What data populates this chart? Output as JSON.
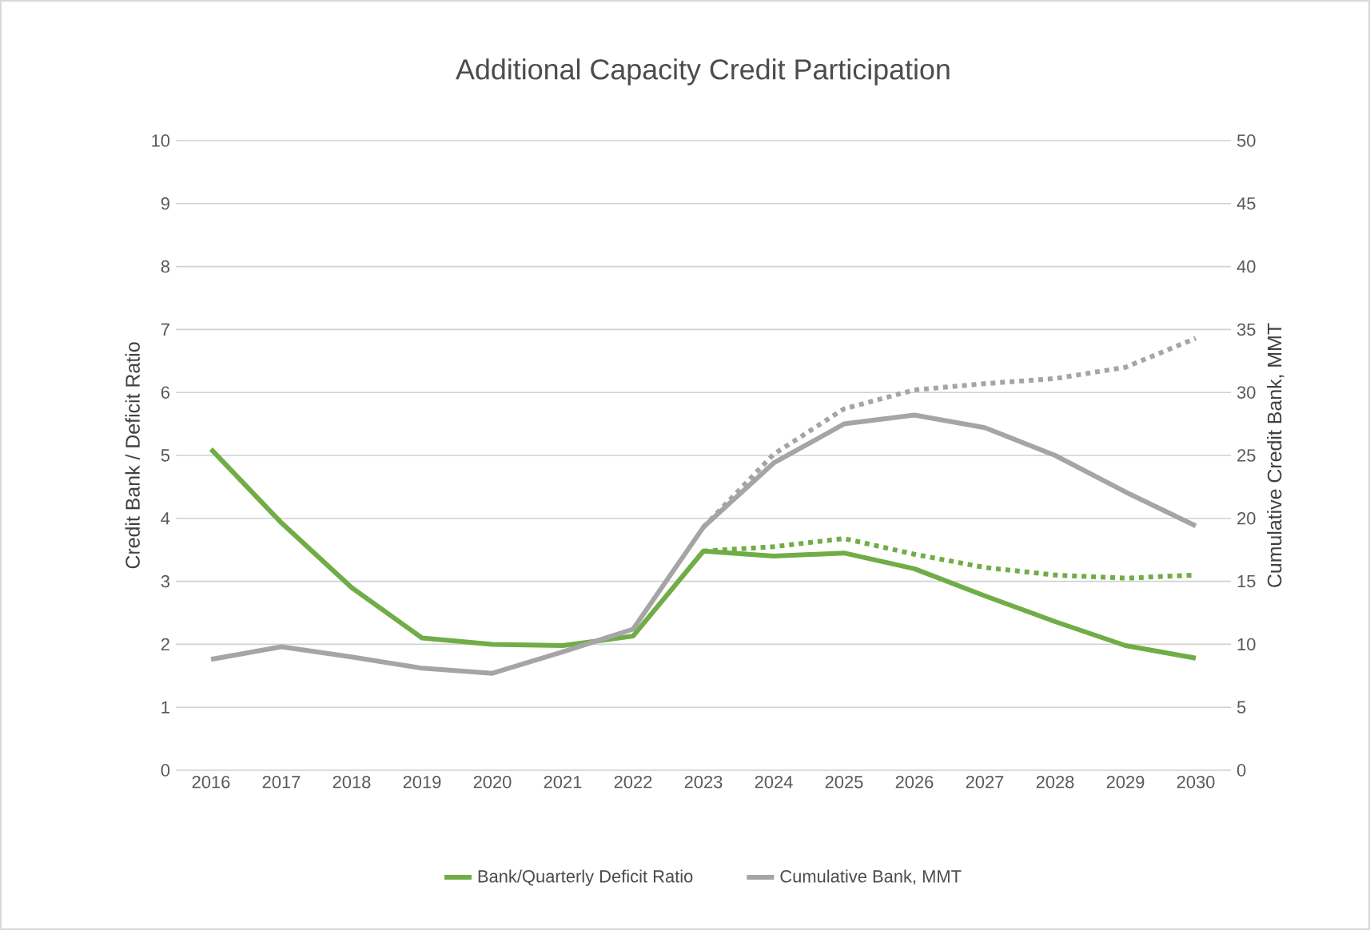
{
  "chart_data": {
    "type": "line",
    "title": "Additional Capacity Credit Participation",
    "ylabel": "Credit Bank / Deficit Ratio",
    "y2label": "Cumulative Credit Bank, MMT",
    "categories": [
      "2016",
      "2017",
      "2018",
      "2019",
      "2020",
      "2021",
      "2022",
      "2023",
      "2024",
      "2025",
      "2026",
      "2027",
      "2028",
      "2029",
      "2030"
    ],
    "series": [
      {
        "name": "Bank/Quarterly Deficit Ratio",
        "color": "#70ad47",
        "values": [
          5.1,
          3.93,
          2.9,
          2.1,
          2.0,
          1.98,
          2.13,
          3.48,
          3.4,
          3.45,
          3.2,
          2.77,
          2.36,
          1.98,
          1.78
        ]
      },
      {
        "name": "Cumulative Bank, MMT",
        "color": "#a5a5a5",
        "axis": "y2",
        "values": [
          8.8,
          9.8,
          9.0,
          8.1,
          7.7,
          9.4,
          11.2,
          19.3,
          24.4,
          27.5,
          28.2,
          27.2,
          25.0,
          22.1,
          19.4
        ]
      },
      {
        "color": "#70ad47",
        "line_style": "dashed",
        "values": [
          null,
          null,
          null,
          null,
          null,
          null,
          null,
          3.48,
          3.55,
          3.68,
          3.43,
          3.22,
          3.1,
          3.05,
          3.1
        ]
      },
      {
        "color": "#a5a5a5",
        "line_style": "dashed",
        "axis": "y2",
        "values": [
          null,
          null,
          null,
          null,
          null,
          null,
          null,
          19.3,
          25.1,
          28.7,
          30.2,
          30.7,
          31.1,
          32.0,
          34.3
        ]
      }
    ],
    "ylim": [
      0,
      10
    ],
    "yticks": [
      0,
      1,
      2,
      3,
      4,
      5,
      6,
      7,
      8,
      9,
      10
    ],
    "y2lim": [
      0,
      50
    ],
    "y2ticks": [
      0,
      5,
      10,
      15,
      20,
      25,
      30,
      35,
      40,
      45,
      50
    ],
    "grid": "y",
    "legend": "bottom",
    "marker": "none",
    "line_style": "solid"
  }
}
